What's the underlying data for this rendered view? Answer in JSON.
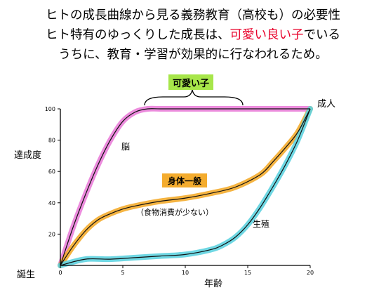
{
  "heading": {
    "line1": "ヒトの成長曲線から見る義務教育（高校も）の必要性",
    "line2_pre": "ヒト特有のゆっくりした成長は、",
    "line2_red": "可愛い良い子",
    "line2_post": "でいる",
    "line3": "うちに、教育・学習が効果的に行なわれるため。"
  },
  "colors": {
    "axis": "#000000",
    "brain_highlight": "#ea7fd9",
    "body_highlight": "#f4ac2e",
    "repro_highlight": "#5fd3e0",
    "cute_box": "#a7e64a",
    "heading_accent": "#e8002a"
  },
  "chart_data": {
    "type": "line",
    "xlim": [
      0,
      20
    ],
    "ylim": [
      0,
      100
    ],
    "x_ticks": [
      "0",
      "5",
      "10",
      "15",
      "20"
    ],
    "y_ticks": [
      "100",
      "80",
      "60",
      "40",
      "20"
    ],
    "ylabel": "達成度",
    "xlabel": "年齢",
    "origin_label": "誕生",
    "end_label": "成人",
    "series": [
      {
        "name": "脳",
        "color": "#ea7fd9",
        "x": [
          0,
          1,
          2,
          3,
          4,
          5,
          6,
          7,
          8,
          10,
          14,
          20
        ],
        "y": [
          0,
          24,
          45,
          64,
          80,
          92,
          98,
          100,
          100,
          100,
          100,
          100
        ]
      },
      {
        "name": "身体一般",
        "color": "#f4ac2e",
        "x": [
          0,
          1,
          2,
          3,
          4,
          5,
          6,
          8,
          10,
          12,
          14,
          16,
          17,
          18,
          19,
          20
        ],
        "y": [
          0,
          12,
          22,
          29,
          33,
          36,
          38,
          41,
          43,
          46,
          50,
          58,
          66,
          75,
          85,
          100
        ]
      },
      {
        "name": "生殖",
        "color": "#5fd3e0",
        "x": [
          0,
          2,
          4,
          6,
          8,
          10,
          12,
          13,
          14,
          15,
          16,
          17,
          18,
          19,
          20
        ],
        "y": [
          0,
          4,
          4,
          5,
          6,
          7,
          10,
          13,
          18,
          26,
          37,
          50,
          64,
          80,
          100
        ]
      }
    ],
    "annotations": {
      "cute_label": "可愛い子",
      "body_note": "（食物消費が少ない）"
    }
  }
}
